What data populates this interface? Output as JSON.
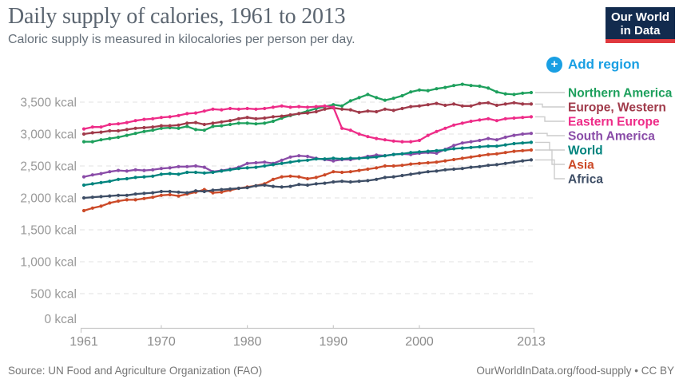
{
  "header": {
    "title": "Daily supply of calories, 1961 to 2013",
    "subtitle": "Caloric supply is measured in kilocalories per person per day."
  },
  "logo": {
    "line1": "Our World",
    "line2": "in Data",
    "bg": "#122b4e",
    "bar": "#e0393e"
  },
  "controls": {
    "add_region": "Add region",
    "accent": "#199fe3"
  },
  "footer": {
    "source": "Source: UN Food and Agriculture Organization (FAO)",
    "link": "OurWorldInData.org/food-supply • CC BY"
  },
  "chart_data": {
    "type": "line",
    "title": "Daily supply of calories, 1961 to 2013",
    "xlabel": "",
    "ylabel": "kcal per person per day",
    "unit": "kcal",
    "xlim": [
      1961,
      2013
    ],
    "ylim": [
      0,
      3850
    ],
    "grid": "horizontal-dashed",
    "legend_position": "right",
    "markers": true,
    "x_ticks": [
      1961,
      1970,
      1980,
      1990,
      2000,
      2013
    ],
    "y_ticks": [
      0,
      500,
      1000,
      1500,
      2000,
      2500,
      3000,
      3500
    ],
    "y_tick_labels": [
      "0 kcal",
      "500 kcal",
      "1,000 kcal",
      "1,500 kcal",
      "2,000 kcal",
      "2,500 kcal",
      "3,000 kcal",
      "3,500 kcal"
    ],
    "x": [
      1961,
      1962,
      1963,
      1964,
      1965,
      1966,
      1967,
      1968,
      1969,
      1970,
      1971,
      1972,
      1973,
      1974,
      1975,
      1976,
      1977,
      1978,
      1979,
      1980,
      1981,
      1982,
      1983,
      1984,
      1985,
      1986,
      1987,
      1988,
      1989,
      1990,
      1991,
      1992,
      1993,
      1994,
      1995,
      1996,
      1997,
      1998,
      1999,
      2000,
      2001,
      2002,
      2003,
      2004,
      2005,
      2006,
      2007,
      2008,
      2009,
      2010,
      2011,
      2012,
      2013
    ],
    "series": [
      {
        "name": "Northern America",
        "color": "#1ea05d",
        "values": [
          2880,
          2880,
          2910,
          2930,
          2950,
          2980,
          3010,
          3040,
          3060,
          3090,
          3100,
          3090,
          3120,
          3070,
          3060,
          3120,
          3130,
          3150,
          3170,
          3170,
          3160,
          3170,
          3200,
          3250,
          3290,
          3320,
          3360,
          3400,
          3430,
          3460,
          3440,
          3520,
          3570,
          3620,
          3570,
          3530,
          3560,
          3600,
          3660,
          3690,
          3680,
          3710,
          3730,
          3760,
          3780,
          3760,
          3750,
          3720,
          3660,
          3630,
          3620,
          3640,
          3650
        ]
      },
      {
        "name": "Europe, Western",
        "color": "#a03a4a",
        "values": [
          3000,
          3020,
          3030,
          3050,
          3050,
          3070,
          3090,
          3100,
          3110,
          3130,
          3130,
          3140,
          3170,
          3180,
          3150,
          3170,
          3190,
          3210,
          3240,
          3260,
          3240,
          3250,
          3270,
          3280,
          3300,
          3320,
          3330,
          3350,
          3390,
          3410,
          3390,
          3380,
          3340,
          3360,
          3350,
          3390,
          3370,
          3400,
          3430,
          3440,
          3460,
          3480,
          3450,
          3470,
          3440,
          3440,
          3480,
          3490,
          3450,
          3470,
          3490,
          3470,
          3470
        ]
      },
      {
        "name": "Eastern Europe",
        "color": "#ee2c88",
        "values": [
          3080,
          3110,
          3110,
          3150,
          3160,
          3180,
          3210,
          3230,
          3240,
          3260,
          3270,
          3290,
          3320,
          3330,
          3360,
          3390,
          3380,
          3400,
          3390,
          3400,
          3390,
          3400,
          3420,
          3440,
          3420,
          3430,
          3420,
          3430,
          3440,
          3420,
          3090,
          3060,
          3000,
          2960,
          2930,
          2910,
          2890,
          2880,
          2880,
          2900,
          2980,
          3040,
          3090,
          3140,
          3170,
          3200,
          3220,
          3240,
          3210,
          3240,
          3250,
          3260,
          3270
        ]
      },
      {
        "name": "South America",
        "color": "#8a4ca8",
        "values": [
          2330,
          2360,
          2380,
          2410,
          2430,
          2420,
          2440,
          2430,
          2440,
          2460,
          2470,
          2490,
          2490,
          2500,
          2480,
          2410,
          2430,
          2450,
          2480,
          2540,
          2550,
          2560,
          2540,
          2590,
          2640,
          2660,
          2650,
          2620,
          2600,
          2580,
          2600,
          2600,
          2620,
          2650,
          2670,
          2660,
          2680,
          2690,
          2680,
          2700,
          2710,
          2700,
          2760,
          2820,
          2860,
          2880,
          2900,
          2930,
          2910,
          2950,
          2980,
          3000,
          3010
        ]
      },
      {
        "name": "World",
        "color": "#00847e",
        "values": [
          2200,
          2220,
          2240,
          2260,
          2290,
          2300,
          2320,
          2330,
          2340,
          2370,
          2380,
          2370,
          2400,
          2400,
          2390,
          2400,
          2420,
          2440,
          2460,
          2470,
          2480,
          2500,
          2520,
          2540,
          2560,
          2580,
          2590,
          2610,
          2610,
          2620,
          2610,
          2620,
          2620,
          2630,
          2640,
          2660,
          2680,
          2690,
          2710,
          2720,
          2730,
          2740,
          2750,
          2770,
          2780,
          2790,
          2800,
          2810,
          2810,
          2830,
          2850,
          2860,
          2870
        ]
      },
      {
        "name": "Asia",
        "color": "#cc4a28",
        "values": [
          1800,
          1840,
          1870,
          1920,
          1950,
          1970,
          1970,
          1990,
          2010,
          2040,
          2050,
          2030,
          2060,
          2090,
          2130,
          2080,
          2090,
          2120,
          2150,
          2170,
          2190,
          2220,
          2290,
          2330,
          2340,
          2330,
          2300,
          2320,
          2360,
          2410,
          2400,
          2410,
          2430,
          2450,
          2470,
          2500,
          2500,
          2510,
          2530,
          2540,
          2550,
          2560,
          2580,
          2600,
          2620,
          2640,
          2660,
          2680,
          2690,
          2710,
          2730,
          2740,
          2750
        ]
      },
      {
        "name": "Africa",
        "color": "#3e4e66",
        "values": [
          2000,
          2010,
          2020,
          2030,
          2040,
          2040,
          2060,
          2070,
          2080,
          2100,
          2100,
          2090,
          2080,
          2110,
          2100,
          2120,
          2130,
          2140,
          2150,
          2160,
          2190,
          2200,
          2180,
          2170,
          2180,
          2210,
          2200,
          2220,
          2230,
          2250,
          2260,
          2250,
          2260,
          2270,
          2290,
          2320,
          2330,
          2350,
          2370,
          2390,
          2410,
          2420,
          2440,
          2450,
          2460,
          2480,
          2490,
          2510,
          2520,
          2540,
          2560,
          2580,
          2595
        ]
      }
    ]
  }
}
